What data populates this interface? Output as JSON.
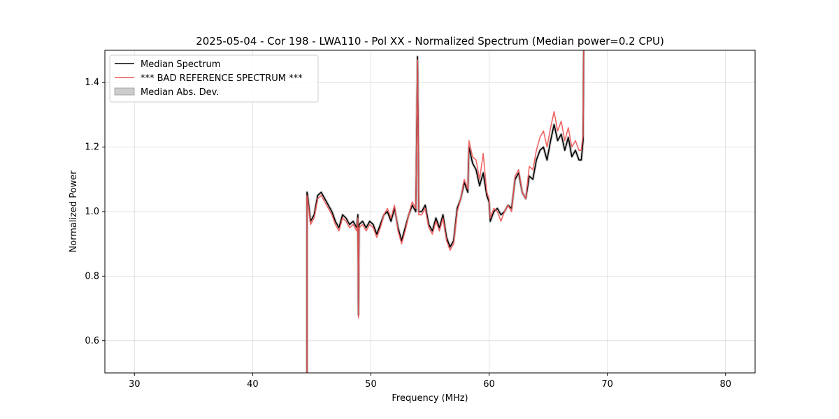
{
  "chart_data": {
    "type": "line",
    "title": "2025-05-04 - Cor 198 - LWA110 - Pol XX - Normalized Spectrum (Median power=0.2 CPU)",
    "xlabel": "Frequency (MHz)",
    "ylabel": "Normalized Power",
    "xlim": [
      27.5,
      82.5
    ],
    "ylim": [
      0.5,
      1.5
    ],
    "xticks": [
      30,
      40,
      50,
      60,
      70,
      80
    ],
    "yticks": [
      0.6,
      0.8,
      1.0,
      1.2,
      1.4
    ],
    "xtick_labels": [
      "30",
      "40",
      "50",
      "60",
      "70",
      "80"
    ],
    "ytick_labels": [
      "0.6",
      "0.8",
      "1.0",
      "1.2",
      "1.4"
    ],
    "grid": true,
    "legend_position": "top-left",
    "colors": {
      "median": "#000000",
      "reference": "#ee5555",
      "mad": "#cccccc"
    },
    "series": [
      {
        "name": "Median Spectrum",
        "x": [
          44.6,
          44.6,
          44.65,
          44.9,
          45.2,
          45.5,
          45.8,
          46.1,
          46.4,
          46.7,
          47.0,
          47.3,
          47.6,
          47.9,
          48.2,
          48.5,
          48.8,
          48.9,
          48.95,
          49.0,
          49.3,
          49.6,
          49.9,
          50.2,
          50.5,
          50.8,
          51.1,
          51.4,
          51.7,
          52.0,
          52.3,
          52.6,
          52.9,
          53.2,
          53.5,
          53.8,
          53.95,
          54.0,
          54.05,
          54.3,
          54.6,
          54.9,
          55.2,
          55.5,
          55.8,
          56.1,
          56.4,
          56.7,
          57.0,
          57.3,
          57.6,
          57.9,
          58.2,
          58.3,
          58.6,
          58.9,
          59.2,
          59.5,
          59.8,
          60.0,
          60.1,
          60.4,
          60.7,
          61.0,
          61.3,
          61.6,
          61.9,
          62.2,
          62.5,
          62.8,
          63.1,
          63.4,
          63.7,
          64.0,
          64.3,
          64.6,
          64.9,
          65.2,
          65.5,
          65.8,
          66.1,
          66.4,
          66.7,
          67.0,
          67.3,
          67.6,
          67.8,
          67.95,
          68.0
        ],
        "values": [
          0.5,
          1.06,
          1.05,
          0.97,
          0.99,
          1.05,
          1.06,
          1.04,
          1.02,
          1.0,
          0.97,
          0.95,
          0.99,
          0.98,
          0.96,
          0.97,
          0.95,
          0.99,
          0.68,
          0.96,
          0.97,
          0.95,
          0.97,
          0.96,
          0.93,
          0.96,
          0.99,
          1.0,
          0.97,
          1.01,
          0.95,
          0.91,
          0.95,
          0.99,
          1.02,
          1.0,
          1.48,
          1.27,
          1.0,
          1.0,
          1.02,
          0.96,
          0.94,
          0.98,
          0.95,
          0.99,
          0.92,
          0.89,
          0.91,
          1.01,
          1.04,
          1.09,
          1.06,
          1.2,
          1.15,
          1.13,
          1.08,
          1.12,
          1.05,
          1.03,
          0.97,
          1.0,
          1.01,
          0.99,
          1.0,
          1.02,
          1.01,
          1.1,
          1.12,
          1.06,
          1.04,
          1.11,
          1.1,
          1.16,
          1.19,
          1.2,
          1.16,
          1.22,
          1.27,
          1.22,
          1.24,
          1.19,
          1.23,
          1.17,
          1.19,
          1.16,
          1.16,
          1.22,
          1.5
        ]
      },
      {
        "name": "*** BAD REFERENCE SPECTRUM ***",
        "x": [
          44.6,
          44.6,
          44.65,
          44.9,
          45.2,
          45.5,
          45.8,
          46.1,
          46.4,
          46.7,
          47.0,
          47.3,
          47.6,
          47.9,
          48.2,
          48.5,
          48.8,
          48.9,
          48.95,
          49.0,
          49.3,
          49.6,
          49.9,
          50.2,
          50.5,
          50.8,
          51.1,
          51.4,
          51.7,
          52.0,
          52.3,
          52.6,
          52.9,
          53.2,
          53.5,
          53.8,
          53.95,
          54.0,
          54.05,
          54.3,
          54.6,
          54.9,
          55.2,
          55.5,
          55.8,
          56.1,
          56.4,
          56.7,
          57.0,
          57.3,
          57.6,
          57.9,
          58.2,
          58.3,
          58.6,
          58.9,
          59.2,
          59.5,
          59.8,
          60.0,
          60.1,
          60.4,
          60.7,
          61.0,
          61.3,
          61.6,
          61.9,
          62.2,
          62.5,
          62.8,
          63.1,
          63.4,
          63.7,
          64.0,
          64.3,
          64.6,
          64.9,
          65.2,
          65.5,
          65.8,
          66.1,
          66.4,
          66.7,
          67.0,
          67.3,
          67.6,
          67.8,
          67.95,
          68.0
        ],
        "values": [
          0.5,
          1.05,
          1.04,
          0.96,
          0.98,
          1.04,
          1.05,
          1.03,
          1.01,
          0.99,
          0.96,
          0.94,
          0.98,
          0.97,
          0.95,
          0.96,
          0.94,
          0.98,
          0.67,
          0.95,
          0.96,
          0.94,
          0.96,
          0.95,
          0.92,
          0.95,
          0.99,
          1.01,
          0.98,
          1.02,
          0.94,
          0.9,
          0.94,
          0.99,
          1.03,
          1.01,
          1.47,
          1.26,
          0.99,
          0.99,
          1.01,
          0.95,
          0.93,
          0.97,
          0.94,
          0.98,
          0.91,
          0.88,
          0.9,
          1.0,
          1.04,
          1.1,
          1.07,
          1.22,
          1.17,
          1.16,
          1.1,
          1.18,
          1.06,
          1.04,
          0.98,
          1.01,
          1.0,
          0.97,
          1.0,
          1.02,
          1.0,
          1.11,
          1.13,
          1.06,
          1.04,
          1.14,
          1.13,
          1.19,
          1.23,
          1.25,
          1.2,
          1.26,
          1.31,
          1.25,
          1.28,
          1.22,
          1.26,
          1.2,
          1.22,
          1.19,
          1.19,
          1.24,
          1.5
        ]
      }
    ],
    "legend": [
      {
        "label": "Median Spectrum",
        "kind": "line",
        "color": "#000000"
      },
      {
        "label": "*** BAD REFERENCE SPECTRUM ***",
        "kind": "line",
        "color": "#ee5555"
      },
      {
        "label": "Median Abs. Dev.",
        "kind": "patch",
        "color": "#cccccc"
      }
    ]
  }
}
